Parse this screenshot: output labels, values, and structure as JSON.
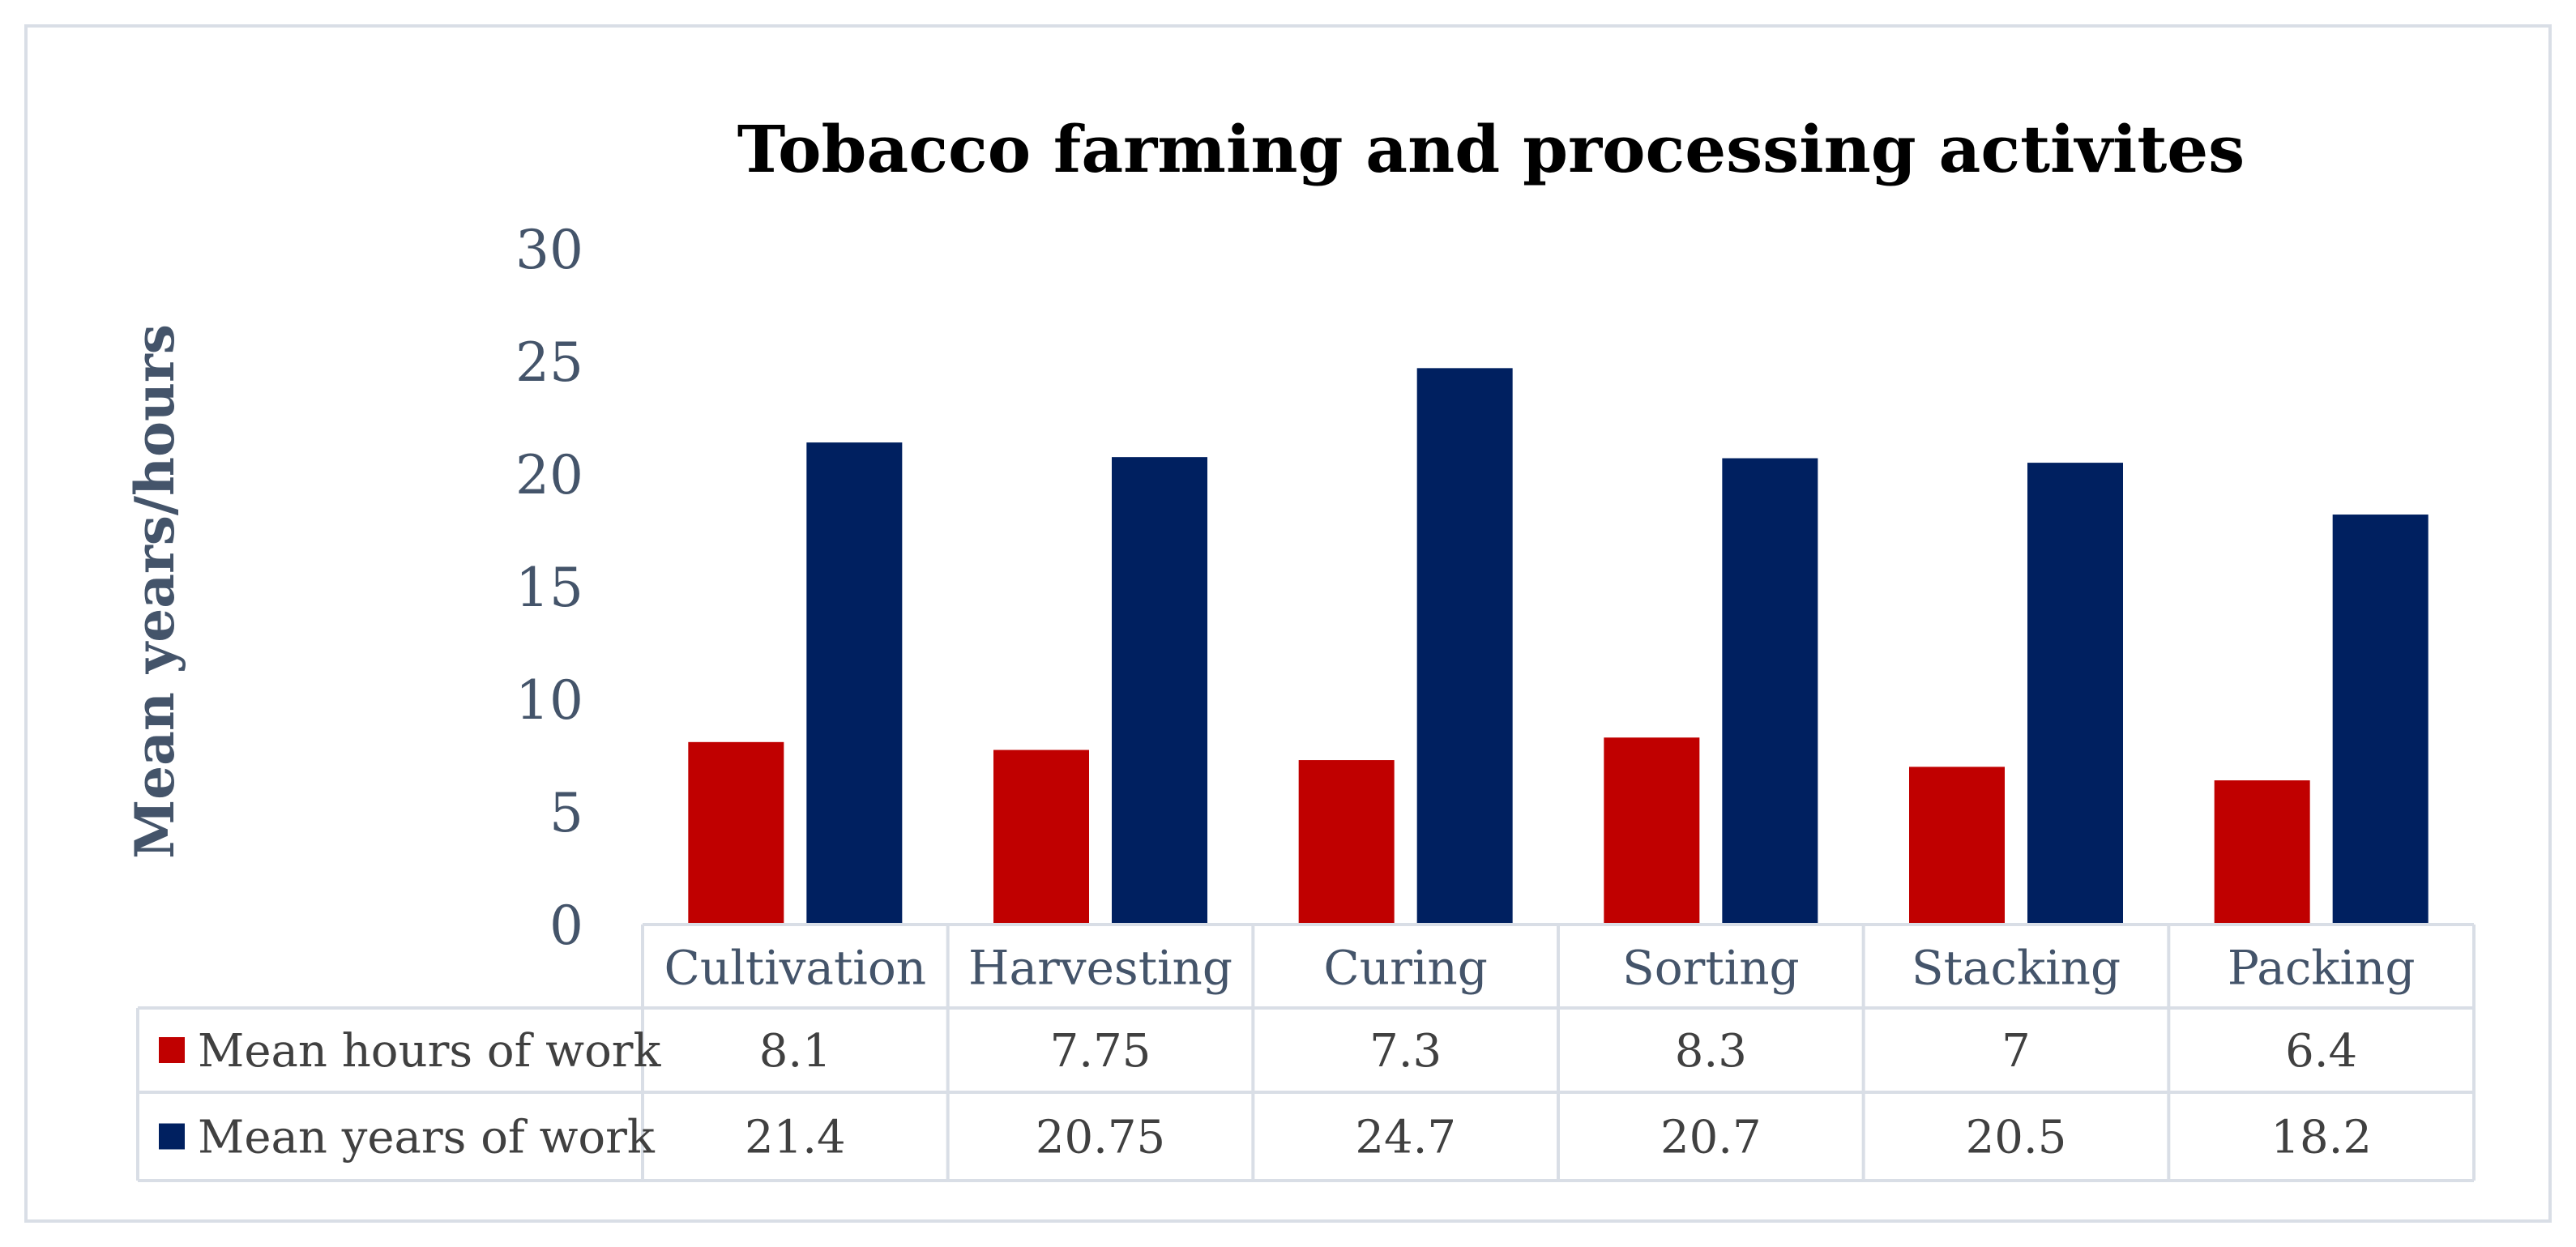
{
  "chart_data": {
    "type": "bar",
    "title": "Tobacco farming and processing activites",
    "ylabel": "Mean years/hours",
    "xlabel": "",
    "ylim": [
      0,
      30
    ],
    "yticks": [
      0,
      5,
      10,
      15,
      20,
      25,
      30
    ],
    "grid": false,
    "legend": "data-table",
    "categories": [
      "Cultivation",
      "Harvesting",
      "Curing",
      "Sorting",
      "Stacking",
      "Packing"
    ],
    "series": [
      {
        "name": "Mean hours of work",
        "color": "#C00000",
        "values": [
          8.1,
          7.75,
          7.3,
          8.3,
          7,
          6.4
        ],
        "labels": [
          "8.1",
          "7.75",
          "7.3",
          "8.3",
          "7",
          "6.4"
        ]
      },
      {
        "name": "Mean years of work",
        "color": "#002060",
        "values": [
          21.4,
          20.75,
          24.7,
          20.7,
          20.5,
          18.2
        ],
        "labels": [
          "21.4",
          "20.75",
          "24.7",
          "20.7",
          "20.5",
          "18.2"
        ]
      }
    ]
  }
}
